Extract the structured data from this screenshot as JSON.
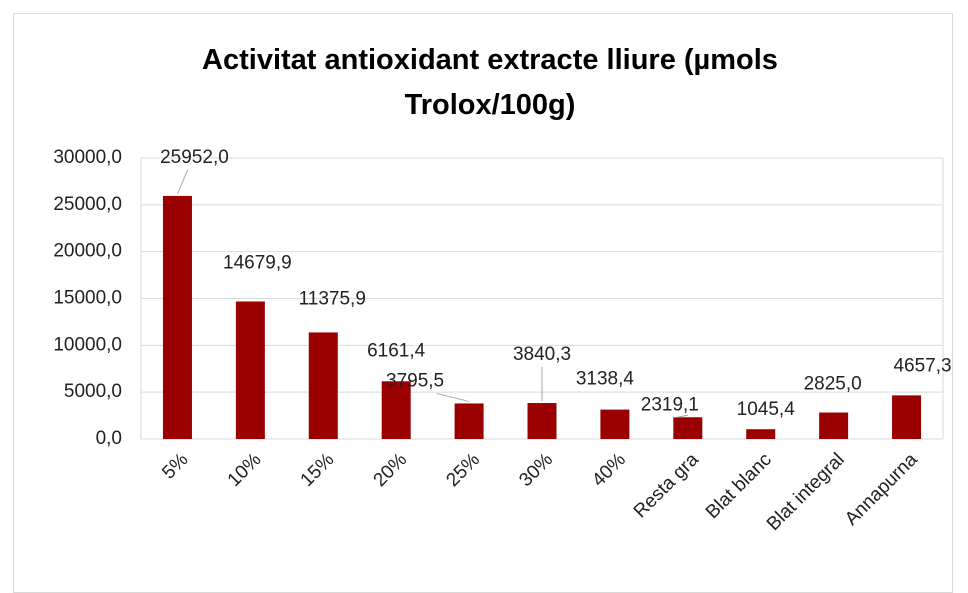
{
  "chart_data": {
    "type": "bar",
    "title": "Activitat antioxidant extracte lliure (µmols Trolox/100g)",
    "categories": [
      "5%",
      "10%",
      "15%",
      "20%",
      "25%",
      "30%",
      "40%",
      "Resta gra",
      "Blat blanc",
      "Blat integral",
      "Annapurna"
    ],
    "values": [
      25952.0,
      14679.9,
      11375.9,
      6161.4,
      3795.5,
      3840.3,
      3138.4,
      2319.1,
      1045.4,
      2825.0,
      4657.3
    ],
    "value_labels": [
      "25952,0",
      "14679,9",
      "11375,9",
      "6161,4",
      "3795,5",
      "3840,3",
      "3138,4",
      "2319,1",
      "1045,4",
      "2825,0",
      "4657,3"
    ],
    "color": "#9b0000",
    "ylim": [
      0,
      30000
    ],
    "yticks": [
      {
        "value": 0,
        "label": "0,0"
      },
      {
        "value": 5000,
        "label": "5000,0"
      },
      {
        "value": 10000,
        "label": "10000,0"
      },
      {
        "value": 15000,
        "label": "15000,0"
      },
      {
        "value": 20000,
        "label": "20000,0"
      },
      {
        "value": 25000,
        "label": "25000,0"
      },
      {
        "value": 30000,
        "label": "30000,0"
      }
    ],
    "grid": true
  }
}
